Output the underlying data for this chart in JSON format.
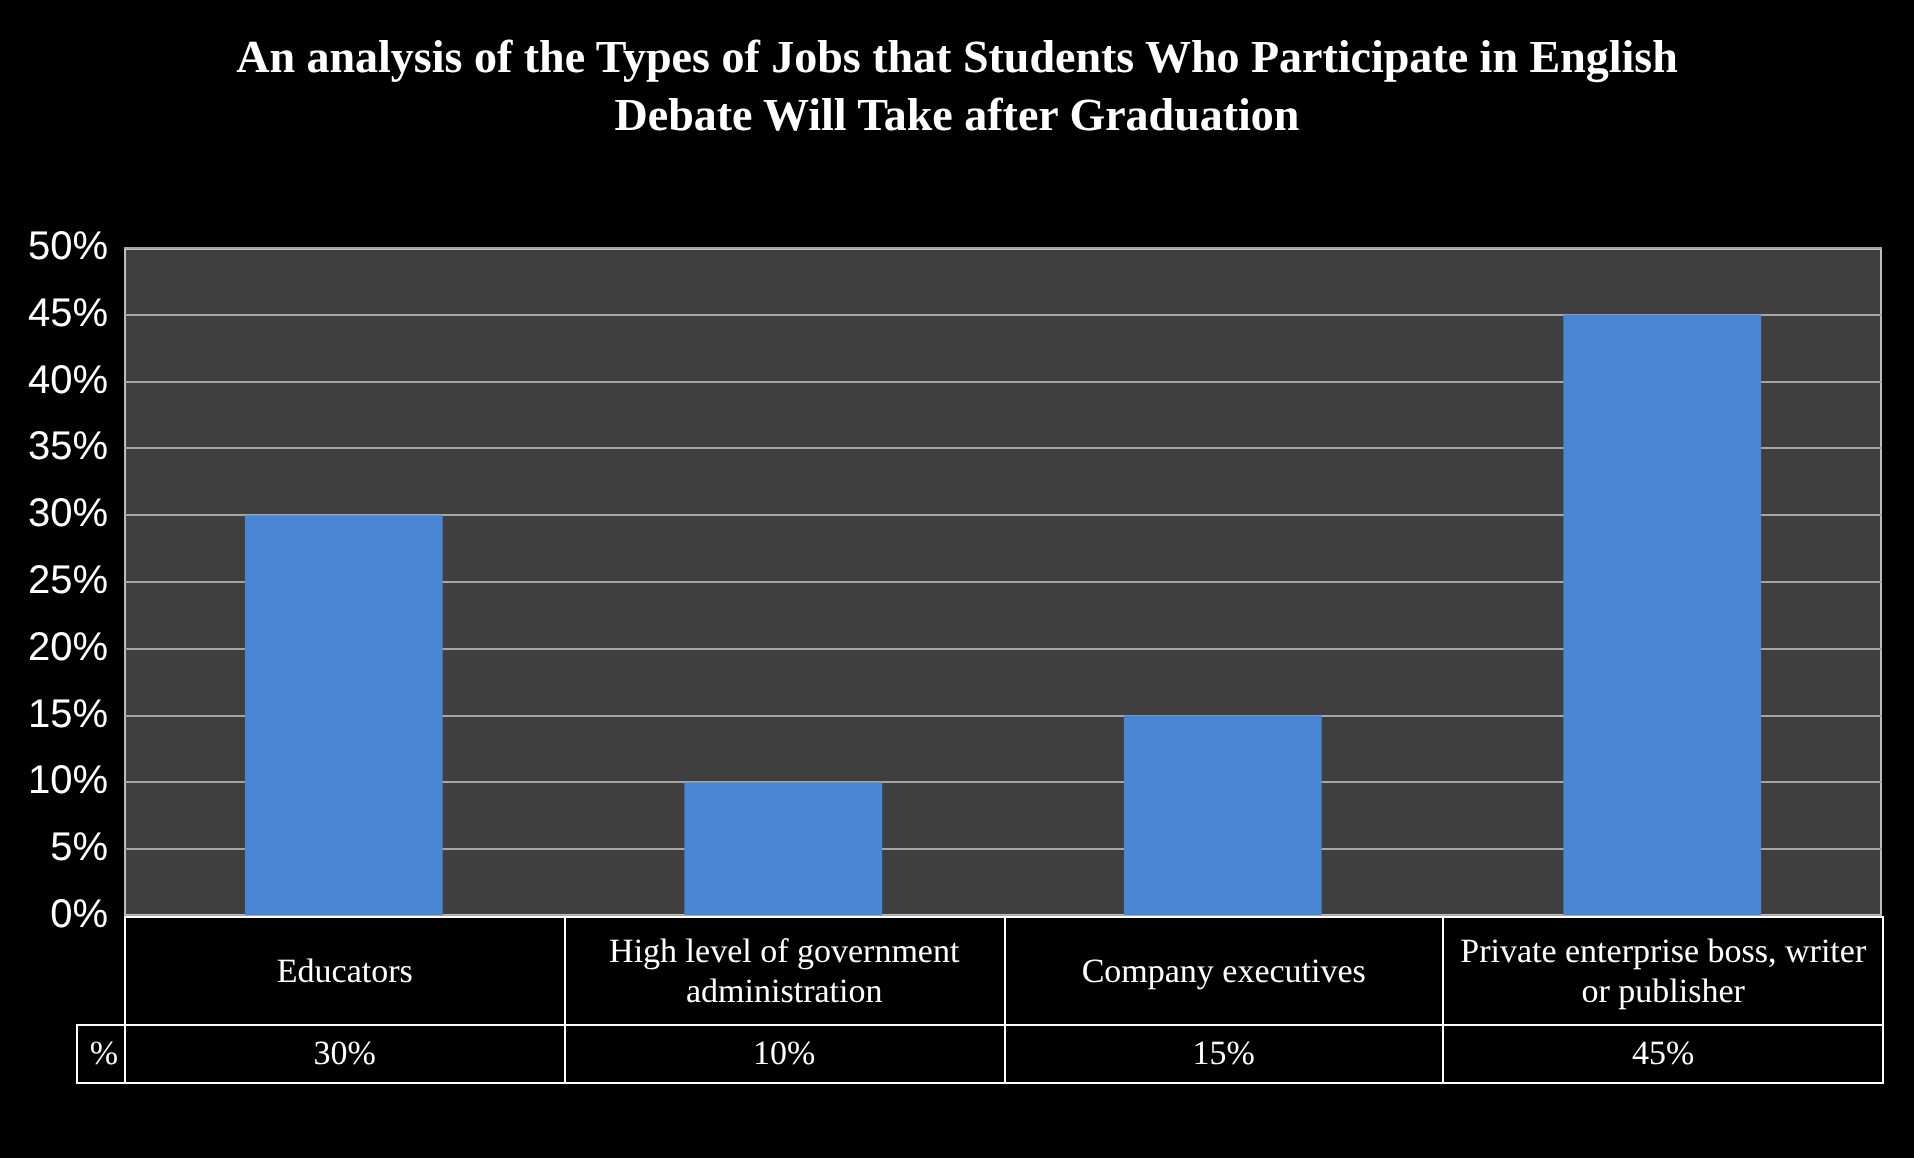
{
  "chart_data": {
    "type": "bar",
    "title": "An analysis of the Types of Jobs that Students Who Participate in English Debate Will Take after Graduation",
    "categories": [
      "Educators",
      "High level of government administration",
      "Company executives",
      "Private enterprise boss, writer or publisher"
    ],
    "series": [
      {
        "name": "%",
        "color": "#4a86d4",
        "values": [
          30,
          10,
          15,
          45
        ],
        "value_labels": [
          "30%",
          "10%",
          "15%",
          "45%"
        ]
      }
    ],
    "ylim": [
      0,
      50
    ],
    "yticks": [
      {
        "value": 0,
        "label": "0%"
      },
      {
        "value": 5,
        "label": "5%"
      },
      {
        "value": 10,
        "label": "10%"
      },
      {
        "value": 15,
        "label": "15%"
      },
      {
        "value": 20,
        "label": "20%"
      },
      {
        "value": 25,
        "label": "25%"
      },
      {
        "value": 30,
        "label": "30%"
      },
      {
        "value": 35,
        "label": "35%"
      },
      {
        "value": 40,
        "label": "40%"
      },
      {
        "value": 45,
        "label": "45%"
      },
      {
        "value": 50,
        "label": "50%"
      }
    ],
    "grid": "y",
    "legend": "bottom"
  }
}
